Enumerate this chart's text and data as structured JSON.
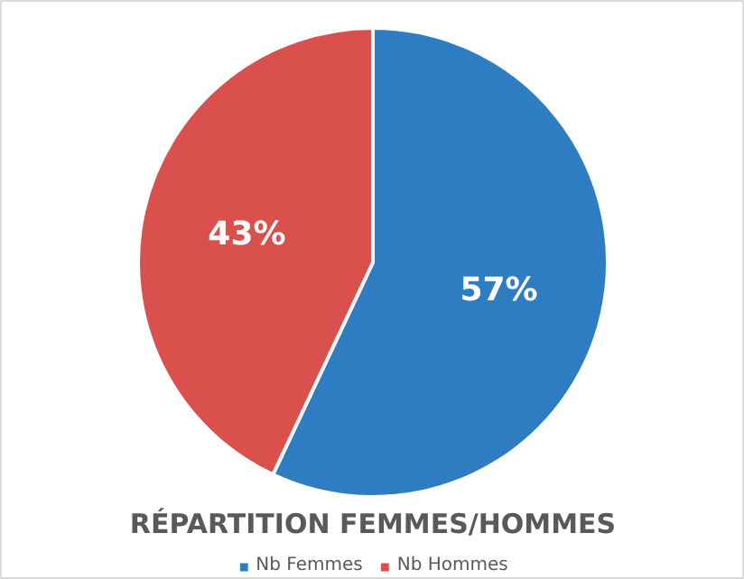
{
  "chart_data": {
    "type": "pie",
    "title": "RÉPARTITION FEMMES/HOMMES",
    "categories": [
      "Nb Femmes",
      "Nb Hommes"
    ],
    "values": [
      57,
      43
    ],
    "colors": [
      "#2e7dc2",
      "#d9504c"
    ],
    "value_labels": [
      "57%",
      "43%"
    ],
    "legend": "bottom"
  }
}
